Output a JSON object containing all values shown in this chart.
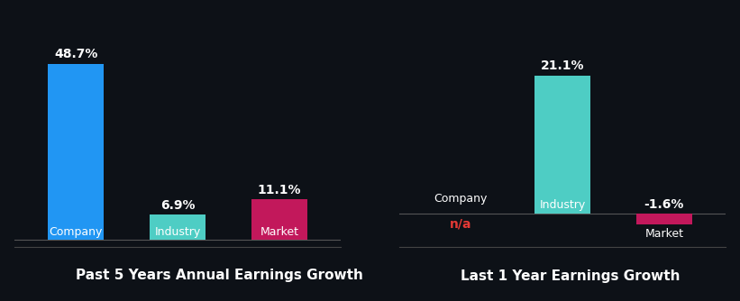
{
  "background_color": "#0d1117",
  "chart1_title": "Past 5 Years Annual Earnings Growth",
  "chart2_title": "Last 1 Year Earnings Growth",
  "chart1": {
    "company_value": 48.7,
    "industry_value": 6.9,
    "market_value": 11.1,
    "company_label": "Company",
    "industry_label": "Industry",
    "market_label": "Market",
    "company_color": "#2196f3",
    "industry_color": "#4ecdc4",
    "market_color": "#c2185b"
  },
  "chart2": {
    "company_value": null,
    "industry_value": 21.1,
    "market_value": -1.6,
    "company_label": "Company",
    "industry_label": "Industry",
    "market_label": "Market",
    "company_color": "#2196f3",
    "industry_color": "#4ecdc4",
    "market_color": "#c2185b",
    "company_text": "n/a",
    "company_text_color": "#e53935"
  },
  "label_color": "#ffffff",
  "value_color": "#ffffff",
  "title_color": "#ffffff",
  "bar_width": 0.55,
  "title_fontsize": 11,
  "label_fontsize": 9,
  "value_fontsize": 10
}
